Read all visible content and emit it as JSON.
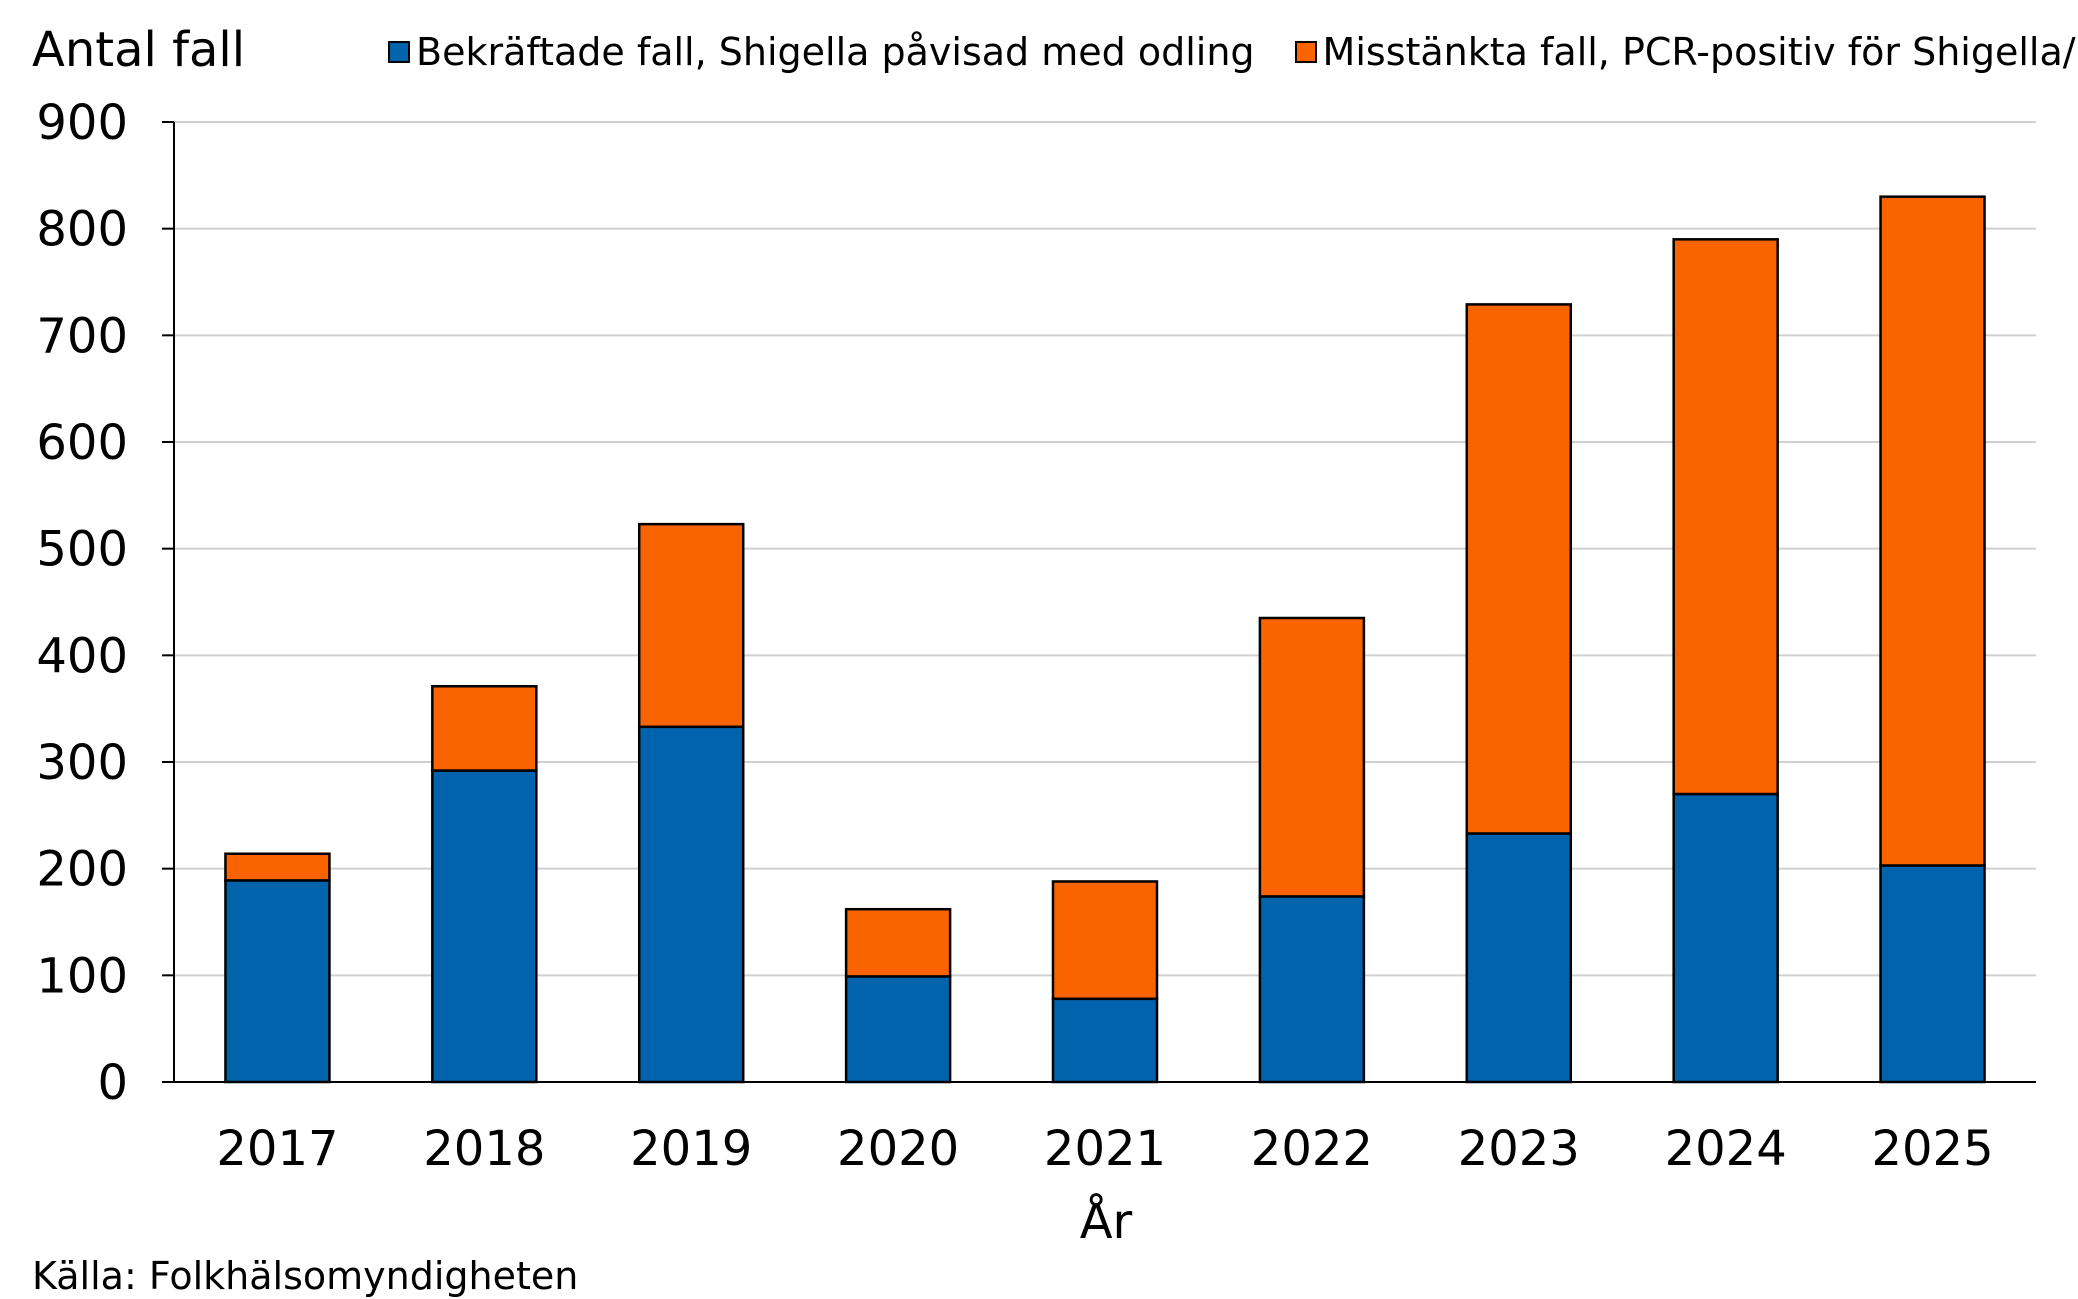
{
  "chart_data": {
    "type": "bar",
    "stacked": true,
    "title": "",
    "ylabel": "Antal fall",
    "xlabel": "År",
    "ylim": [
      0,
      900
    ],
    "yticks": [
      0,
      100,
      200,
      300,
      400,
      500,
      600,
      700,
      800,
      900
    ],
    "grid": true,
    "legend_position": "top",
    "categories": [
      "2017",
      "2018",
      "2019",
      "2020",
      "2021",
      "2022",
      "2023",
      "2024",
      "2025"
    ],
    "series": [
      {
        "name": "Bekräftade fall, Shigella påvisad med odling",
        "color": "#0063AC",
        "values": [
          189,
          292,
          333,
          99,
          78,
          174,
          233,
          270,
          203
        ]
      },
      {
        "name": "Misstänkta fall, PCR-positiv för Shigella/EIEC",
        "color": "#F96400",
        "values": [
          25,
          79,
          190,
          63,
          110,
          261,
          496,
          520,
          627
        ]
      }
    ]
  },
  "source_text": "Källa: Folkhälsomyndigheten"
}
